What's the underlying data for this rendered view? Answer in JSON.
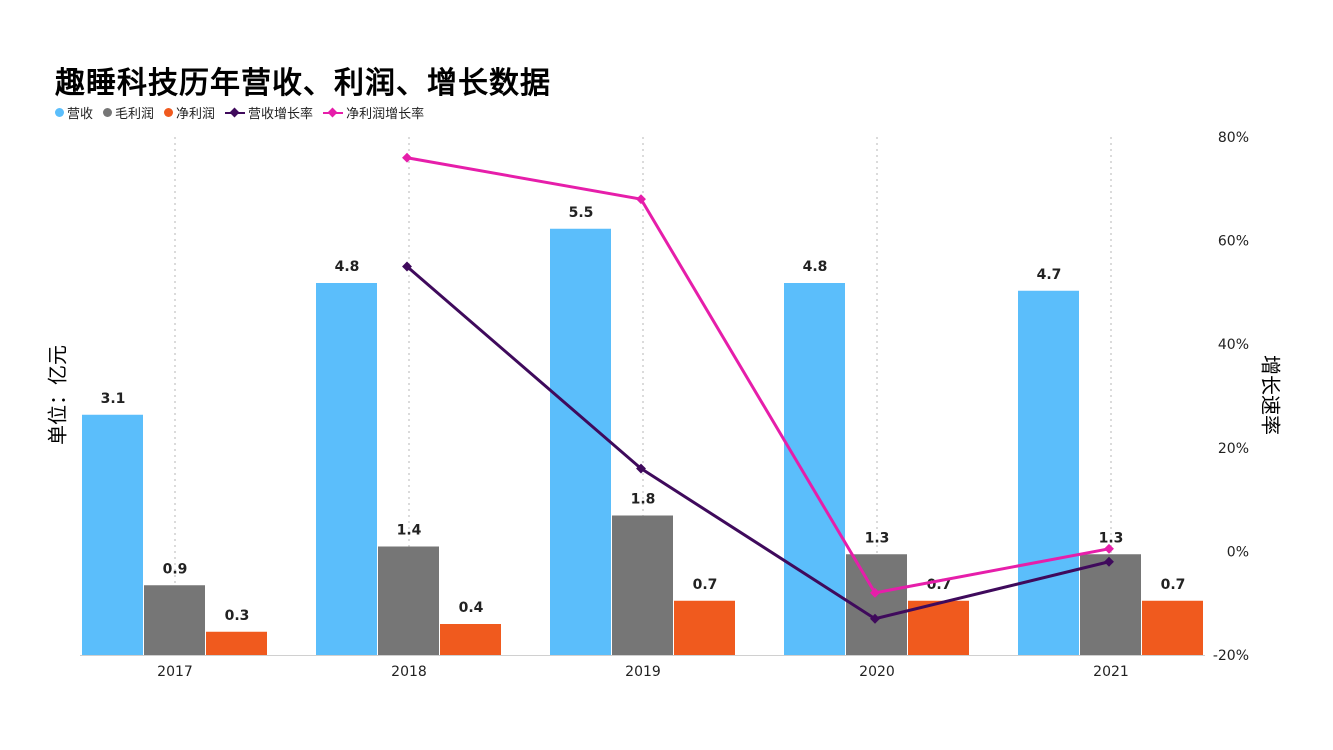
{
  "chart_data": {
    "type": "bar",
    "title": "趣睡科技历年营收、利润、增长数据",
    "categories": [
      "2017",
      "2018",
      "2019",
      "2020",
      "2021"
    ],
    "bar_series": [
      {
        "name": "营收",
        "color": "#5BBEFB",
        "values": [
          3.1,
          4.8,
          5.5,
          4.8,
          4.7
        ],
        "labels": [
          "3.1",
          "4.8",
          "5.5",
          "4.8",
          "4.7"
        ]
      },
      {
        "name": "毛利润",
        "color": "#767676",
        "values": [
          0.9,
          1.4,
          1.8,
          1.3,
          1.3
        ],
        "labels": [
          "0.9",
          "1.4",
          "1.8",
          "1.3",
          "1.3"
        ]
      },
      {
        "name": "净利润",
        "color": "#F05A1E",
        "values": [
          0.3,
          0.4,
          0.7,
          0.7,
          0.7
        ],
        "labels": [
          "0.3",
          "0.4",
          "0.7",
          "0.7",
          "0.7"
        ]
      }
    ],
    "line_series": [
      {
        "name": "营收增长率",
        "color": "#3F0A5C",
        "x_index": [
          1,
          2,
          3,
          4
        ],
        "values": [
          55,
          16,
          -13,
          -2
        ]
      },
      {
        "name": "净利润增长率",
        "color": "#E61EAA",
        "x_index": [
          1,
          2,
          3,
          4
        ],
        "values": [
          76,
          68,
          -8,
          0.5
        ]
      }
    ],
    "ylabel": "单位：亿元",
    "y2label": "增长速率",
    "y2_ticks": [
      "80%",
      "60%",
      "40%",
      "20%",
      "0%",
      "-20%"
    ],
    "y2lim": [
      -20,
      80
    ]
  }
}
